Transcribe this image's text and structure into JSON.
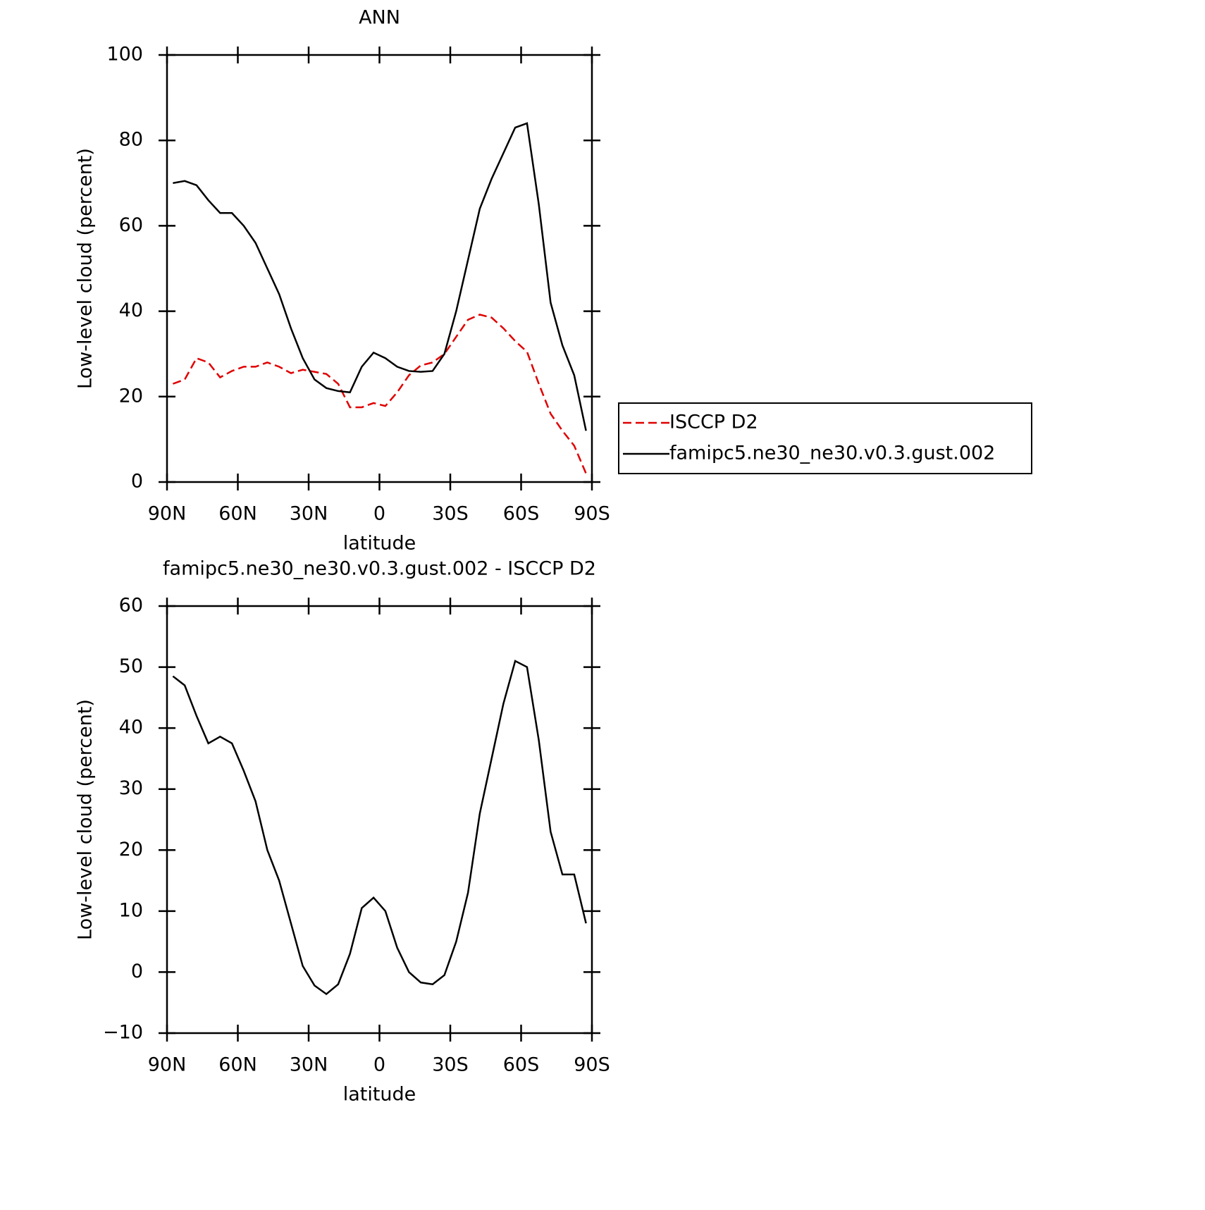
{
  "chart_data": [
    {
      "type": "line",
      "title": "ANN",
      "xlabel": "latitude",
      "ylabel": "Low-level cloud (percent)",
      "x": [
        87.5,
        82.5,
        77.5,
        72.5,
        67.5,
        62.5,
        57.5,
        52.5,
        47.5,
        42.5,
        37.5,
        32.5,
        27.5,
        22.5,
        17.5,
        12.5,
        7.5,
        2.5,
        -2.5,
        -7.5,
        -12.5,
        -17.5,
        -22.5,
        -27.5,
        -32.5,
        -37.5,
        -42.5,
        -47.5,
        -52.5,
        -57.5,
        -62.5,
        -67.5,
        -72.5,
        -77.5,
        -82.5,
        -87.5
      ],
      "xlim": [
        90,
        -90
      ],
      "xticks": [
        {
          "value": 90,
          "label": "90N"
        },
        {
          "value": 60,
          "label": "60N"
        },
        {
          "value": 30,
          "label": "30N"
        },
        0,
        {
          "value": -30,
          "label": "30S"
        },
        {
          "value": -60,
          "label": "60S"
        },
        {
          "value": -90,
          "label": "90S"
        }
      ],
      "ylim": [
        0,
        100
      ],
      "yticks": [
        0,
        20,
        40,
        60,
        80,
        100
      ],
      "series": [
        {
          "name": "ISCCP D2",
          "color": "#e00000",
          "dash": true,
          "values": [
            23,
            24,
            29,
            28,
            24.5,
            26,
            27,
            27,
            28,
            27,
            25.5,
            26.3,
            25.8,
            25.3,
            23,
            17.5,
            17.5,
            18.5,
            17.8,
            21,
            25,
            27.3,
            28,
            30,
            34,
            38,
            39.2,
            38.5,
            36,
            33,
            30.5,
            23,
            16,
            12,
            8.5,
            2
          ]
        },
        {
          "name": "famipc5.ne30_ne30.v0.3.gust.002",
          "color": "#000000",
          "dash": false,
          "values": [
            70,
            70.5,
            69.5,
            66,
            63,
            63,
            60,
            56,
            50,
            44,
            36,
            29,
            24,
            22,
            21.3,
            21,
            27,
            30.3,
            29,
            27,
            26,
            25.8,
            26,
            30,
            40,
            52,
            64,
            71,
            77,
            83,
            84,
            65,
            42,
            32,
            25,
            12
          ]
        }
      ]
    },
    {
      "type": "line",
      "title": "famipc5.ne30_ne30.v0.3.gust.002 - ISCCP D2",
      "xlabel": "latitude",
      "ylabel": "Low-level cloud (percent)",
      "x": [
        87.5,
        82.5,
        77.5,
        72.5,
        67.5,
        62.5,
        57.5,
        52.5,
        47.5,
        42.5,
        37.5,
        32.5,
        27.5,
        22.5,
        17.5,
        12.5,
        7.5,
        2.5,
        -2.5,
        -7.5,
        -12.5,
        -17.5,
        -22.5,
        -27.5,
        -32.5,
        -37.5,
        -42.5,
        -47.5,
        -52.5,
        -57.5,
        -62.5,
        -67.5,
        -72.5,
        -77.5,
        -82.5,
        -87.5
      ],
      "xlim": [
        90,
        -90
      ],
      "xticks": [
        {
          "value": 90,
          "label": "90N"
        },
        {
          "value": 60,
          "label": "60N"
        },
        {
          "value": 30,
          "label": "30N"
        },
        0,
        {
          "value": -30,
          "label": "30S"
        },
        {
          "value": -60,
          "label": "60S"
        },
        {
          "value": -90,
          "label": "90S"
        }
      ],
      "ylim": [
        -10,
        60
      ],
      "yticks": [
        {
          "value": -10,
          "label": "−10"
        },
        0,
        10,
        20,
        30,
        40,
        50,
        60
      ],
      "series": [
        {
          "color": "#000000",
          "dash": false,
          "values": [
            48.5,
            47,
            42,
            37.5,
            38.6,
            37.5,
            33,
            28,
            20,
            15,
            8,
            1,
            -2.2,
            -3.6,
            -2,
            3,
            10.5,
            12.2,
            10,
            4,
            0,
            -1.7,
            -2,
            -0.5,
            5,
            13,
            26,
            35,
            44,
            51,
            50,
            38,
            23,
            16,
            16,
            8
          ]
        }
      ]
    }
  ]
}
